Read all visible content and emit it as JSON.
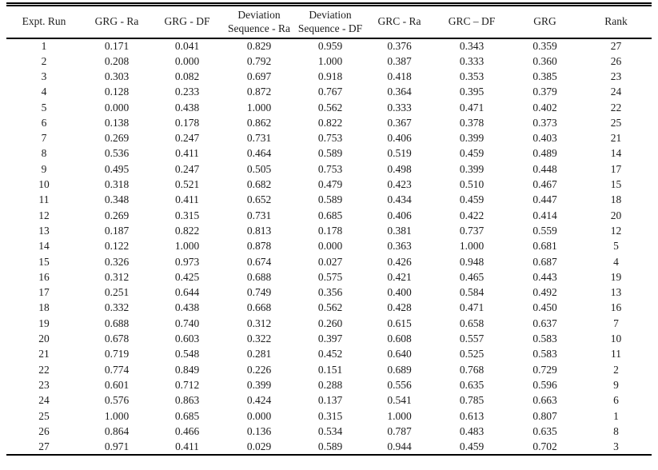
{
  "table": {
    "columns": [
      {
        "id": "expt-run",
        "lines": [
          "Expt. Run"
        ]
      },
      {
        "id": "grg-ra",
        "lines": [
          "GRG - Ra"
        ]
      },
      {
        "id": "grg-df",
        "lines": [
          "GRG - DF"
        ]
      },
      {
        "id": "deviation-sequence-ra",
        "lines": [
          "Deviation",
          "Sequence - Ra"
        ]
      },
      {
        "id": "deviation-sequence-df",
        "lines": [
          "Deviation",
          "Sequence - DF"
        ]
      },
      {
        "id": "grc-ra",
        "lines": [
          "GRC - Ra"
        ]
      },
      {
        "id": "grc-df",
        "lines": [
          "GRC – DF"
        ]
      },
      {
        "id": "grg",
        "lines": [
          "GRG"
        ]
      },
      {
        "id": "rank",
        "lines": [
          "Rank"
        ]
      }
    ],
    "rows": [
      [
        "1",
        "0.171",
        "0.041",
        "0.829",
        "0.959",
        "0.376",
        "0.343",
        "0.359",
        "27"
      ],
      [
        "2",
        "0.208",
        "0.000",
        "0.792",
        "1.000",
        "0.387",
        "0.333",
        "0.360",
        "26"
      ],
      [
        "3",
        "0.303",
        "0.082",
        "0.697",
        "0.918",
        "0.418",
        "0.353",
        "0.385",
        "23"
      ],
      [
        "4",
        "0.128",
        "0.233",
        "0.872",
        "0.767",
        "0.364",
        "0.395",
        "0.379",
        "24"
      ],
      [
        "5",
        "0.000",
        "0.438",
        "1.000",
        "0.562",
        "0.333",
        "0.471",
        "0.402",
        "22"
      ],
      [
        "6",
        "0.138",
        "0.178",
        "0.862",
        "0.822",
        "0.367",
        "0.378",
        "0.373",
        "25"
      ],
      [
        "7",
        "0.269",
        "0.247",
        "0.731",
        "0.753",
        "0.406",
        "0.399",
        "0.403",
        "21"
      ],
      [
        "8",
        "0.536",
        "0.411",
        "0.464",
        "0.589",
        "0.519",
        "0.459",
        "0.489",
        "14"
      ],
      [
        "9",
        "0.495",
        "0.247",
        "0.505",
        "0.753",
        "0.498",
        "0.399",
        "0.448",
        "17"
      ],
      [
        "10",
        "0.318",
        "0.521",
        "0.682",
        "0.479",
        "0.423",
        "0.510",
        "0.467",
        "15"
      ],
      [
        "11",
        "0.348",
        "0.411",
        "0.652",
        "0.589",
        "0.434",
        "0.459",
        "0.447",
        "18"
      ],
      [
        "12",
        "0.269",
        "0.315",
        "0.731",
        "0.685",
        "0.406",
        "0.422",
        "0.414",
        "20"
      ],
      [
        "13",
        "0.187",
        "0.822",
        "0.813",
        "0.178",
        "0.381",
        "0.737",
        "0.559",
        "12"
      ],
      [
        "14",
        "0.122",
        "1.000",
        "0.878",
        "0.000",
        "0.363",
        "1.000",
        "0.681",
        "5"
      ],
      [
        "15",
        "0.326",
        "0.973",
        "0.674",
        "0.027",
        "0.426",
        "0.948",
        "0.687",
        "4"
      ],
      [
        "16",
        "0.312",
        "0.425",
        "0.688",
        "0.575",
        "0.421",
        "0.465",
        "0.443",
        "19"
      ],
      [
        "17",
        "0.251",
        "0.644",
        "0.749",
        "0.356",
        "0.400",
        "0.584",
        "0.492",
        "13"
      ],
      [
        "18",
        "0.332",
        "0.438",
        "0.668",
        "0.562",
        "0.428",
        "0.471",
        "0.450",
        "16"
      ],
      [
        "19",
        "0.688",
        "0.740",
        "0.312",
        "0.260",
        "0.615",
        "0.658",
        "0.637",
        "7"
      ],
      [
        "20",
        "0.678",
        "0.603",
        "0.322",
        "0.397",
        "0.608",
        "0.557",
        "0.583",
        "10"
      ],
      [
        "21",
        "0.719",
        "0.548",
        "0.281",
        "0.452",
        "0.640",
        "0.525",
        "0.583",
        "11"
      ],
      [
        "22",
        "0.774",
        "0.849",
        "0.226",
        "0.151",
        "0.689",
        "0.768",
        "0.729",
        "2"
      ],
      [
        "23",
        "0.601",
        "0.712",
        "0.399",
        "0.288",
        "0.556",
        "0.635",
        "0.596",
        "9"
      ],
      [
        "24",
        "0.576",
        "0.863",
        "0.424",
        "0.137",
        "0.541",
        "0.785",
        "0.663",
        "6"
      ],
      [
        "25",
        "1.000",
        "0.685",
        "0.000",
        "0.315",
        "1.000",
        "0.613",
        "0.807",
        "1"
      ],
      [
        "26",
        "0.864",
        "0.466",
        "0.136",
        "0.534",
        "0.787",
        "0.483",
        "0.635",
        "8"
      ],
      [
        "27",
        "0.971",
        "0.411",
        "0.029",
        "0.589",
        "0.944",
        "0.459",
        "0.702",
        "3"
      ]
    ]
  },
  "colors": {
    "text": "#1c1c1c",
    "rule": "#000000",
    "background": "#ffffff"
  }
}
